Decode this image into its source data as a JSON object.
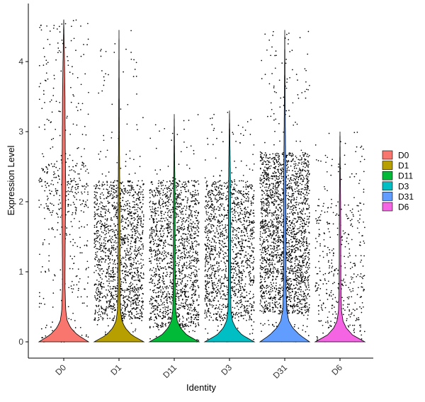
{
  "chart_data": {
    "type": "violin",
    "title": "",
    "xlabel": "Identity",
    "ylabel": "Expression Level",
    "ylim": [
      -0.2,
      4.7
    ],
    "yticks": [
      0,
      1,
      2,
      3,
      4
    ],
    "grid": false,
    "legend_position": "right",
    "categories": [
      "D0",
      "D1",
      "D11",
      "D3",
      "D31",
      "D6"
    ],
    "series": [
      {
        "name": "D0",
        "color": "#F8766D",
        "max": 4.6,
        "density": [
          [
            0,
            1.0
          ],
          [
            0.1,
            0.55
          ],
          [
            0.2,
            0.28
          ],
          [
            0.3,
            0.14
          ],
          [
            0.45,
            0.08
          ],
          [
            0.8,
            0.05
          ],
          [
            1.5,
            0.06
          ],
          [
            2.2,
            0.08
          ],
          [
            2.8,
            0.06
          ],
          [
            3.5,
            0.05
          ],
          [
            4.0,
            0.03
          ],
          [
            4.6,
            0.0
          ]
        ],
        "jitter": {
          "count": 520,
          "dense_range": [
            1.8,
            2.6
          ],
          "dense_weight": 0.35
        }
      },
      {
        "name": "D1",
        "color": "#B79F00",
        "max": 4.45,
        "density": [
          [
            0,
            1.0
          ],
          [
            0.1,
            0.5
          ],
          [
            0.2,
            0.25
          ],
          [
            0.3,
            0.12
          ],
          [
            0.45,
            0.06
          ],
          [
            0.8,
            0.04
          ],
          [
            1.5,
            0.035
          ],
          [
            2.2,
            0.03
          ],
          [
            3.0,
            0.015
          ],
          [
            4.45,
            0.0
          ]
        ],
        "jitter": {
          "count": 1500,
          "dense_range": [
            0.3,
            2.3
          ],
          "dense_weight": 0.9
        }
      },
      {
        "name": "D11",
        "color": "#00BA38",
        "max": 3.25,
        "density": [
          [
            0,
            1.0
          ],
          [
            0.1,
            0.5
          ],
          [
            0.2,
            0.25
          ],
          [
            0.3,
            0.12
          ],
          [
            0.45,
            0.06
          ],
          [
            0.8,
            0.04
          ],
          [
            1.5,
            0.035
          ],
          [
            2.2,
            0.03
          ],
          [
            2.6,
            0.015
          ],
          [
            3.25,
            0.0
          ]
        ],
        "jitter": {
          "count": 1500,
          "dense_range": [
            0.2,
            2.3
          ],
          "dense_weight": 0.9
        }
      },
      {
        "name": "D3",
        "color": "#00BFC4",
        "max": 3.3,
        "density": [
          [
            0,
            1.0
          ],
          [
            0.1,
            0.5
          ],
          [
            0.2,
            0.25
          ],
          [
            0.3,
            0.12
          ],
          [
            0.45,
            0.06
          ],
          [
            0.8,
            0.045
          ],
          [
            1.5,
            0.045
          ],
          [
            2.0,
            0.04
          ],
          [
            2.5,
            0.03
          ],
          [
            3.3,
            0.0
          ]
        ],
        "jitter": {
          "count": 1400,
          "dense_range": [
            0.3,
            2.3
          ],
          "dense_weight": 0.88
        }
      },
      {
        "name": "D31",
        "color": "#619CFF",
        "max": 4.45,
        "density": [
          [
            0,
            1.0
          ],
          [
            0.1,
            0.6
          ],
          [
            0.2,
            0.32
          ],
          [
            0.3,
            0.16
          ],
          [
            0.45,
            0.08
          ],
          [
            0.8,
            0.05
          ],
          [
            1.5,
            0.05
          ],
          [
            2.2,
            0.045
          ],
          [
            2.8,
            0.03
          ],
          [
            3.5,
            0.015
          ],
          [
            4.45,
            0.0
          ]
        ],
        "jitter": {
          "count": 2200,
          "dense_range": [
            0.4,
            2.7
          ],
          "dense_weight": 0.88
        }
      },
      {
        "name": "D6",
        "color": "#F564E3",
        "max": 3.0,
        "density": [
          [
            0,
            1.0
          ],
          [
            0.1,
            0.5
          ],
          [
            0.2,
            0.25
          ],
          [
            0.3,
            0.12
          ],
          [
            0.45,
            0.06
          ],
          [
            0.8,
            0.035
          ],
          [
            1.5,
            0.03
          ],
          [
            2.0,
            0.025
          ],
          [
            2.5,
            0.01
          ],
          [
            3.0,
            0.0
          ]
        ],
        "jitter": {
          "count": 420,
          "dense_range": [
            0.2,
            2.0
          ],
          "dense_weight": 0.6
        }
      }
    ]
  }
}
